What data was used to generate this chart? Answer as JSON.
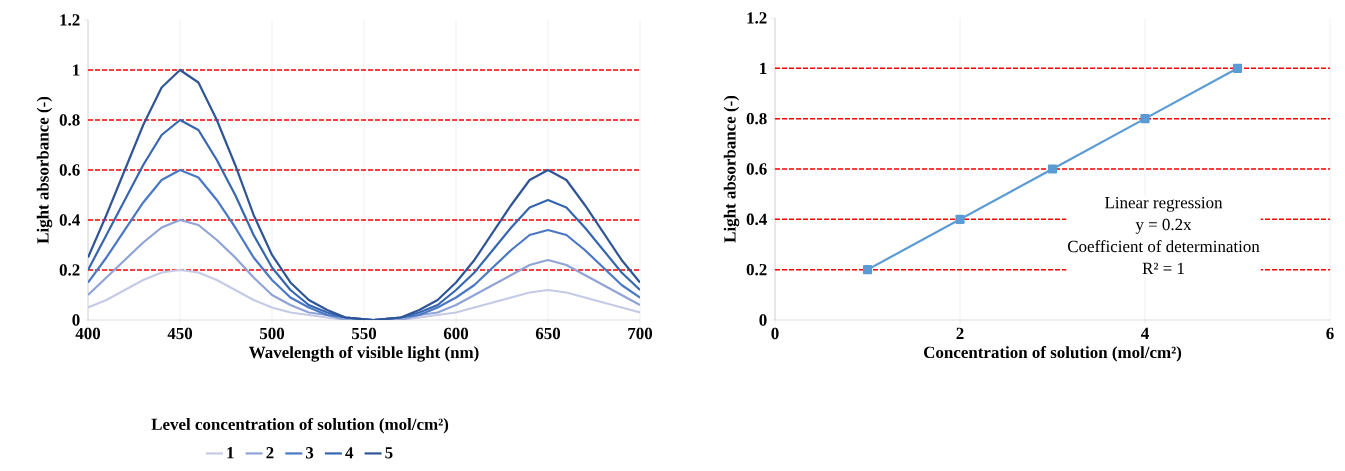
{
  "chart_data": [
    {
      "type": "line",
      "xlabel": "Wavelength of visible light (nm)",
      "ylabel": "Light absorbance (-)",
      "legend_title": "Level concentration of solution (mol/cm²)",
      "legend": "bottom",
      "grid": "x",
      "x": [
        400,
        410,
        420,
        430,
        440,
        450,
        460,
        470,
        480,
        490,
        500,
        510,
        520,
        530,
        540,
        555,
        570,
        580,
        590,
        600,
        610,
        620,
        630,
        640,
        650,
        660,
        670,
        680,
        690,
        700
      ],
      "xlim": [
        400,
        700
      ],
      "xticks": [
        400,
        450,
        500,
        550,
        600,
        650,
        700
      ],
      "ylim": [
        0,
        1.2
      ],
      "yticks": [
        0,
        0.2,
        0.4,
        0.6,
        0.8,
        1,
        1.2
      ],
      "series": [
        {
          "name": "1",
          "color": "#c5cbe6",
          "values": [
            0.05,
            0.08,
            0.12,
            0.16,
            0.19,
            0.2,
            0.19,
            0.16,
            0.12,
            0.08,
            0.05,
            0.03,
            0.02,
            0.01,
            0,
            0,
            0,
            0.01,
            0.02,
            0.03,
            0.05,
            0.07,
            0.09,
            0.11,
            0.12,
            0.11,
            0.09,
            0.07,
            0.05,
            0.03
          ]
        },
        {
          "name": "2",
          "color": "#8fa3d6",
          "values": [
            0.1,
            0.17,
            0.24,
            0.31,
            0.37,
            0.4,
            0.38,
            0.32,
            0.25,
            0.17,
            0.1,
            0.06,
            0.03,
            0.02,
            0,
            0,
            0,
            0.02,
            0.03,
            0.06,
            0.1,
            0.14,
            0.18,
            0.22,
            0.24,
            0.22,
            0.18,
            0.14,
            0.1,
            0.06
          ]
        },
        {
          "name": "3",
          "color": "#4a78c4",
          "values": [
            0.15,
            0.25,
            0.36,
            0.47,
            0.56,
            0.6,
            0.57,
            0.48,
            0.37,
            0.25,
            0.16,
            0.09,
            0.05,
            0.02,
            0.01,
            0,
            0.01,
            0.02,
            0.05,
            0.09,
            0.14,
            0.21,
            0.28,
            0.34,
            0.36,
            0.34,
            0.28,
            0.21,
            0.14,
            0.09
          ]
        },
        {
          "name": "4",
          "color": "#3766b0",
          "values": [
            0.2,
            0.34,
            0.48,
            0.62,
            0.74,
            0.8,
            0.76,
            0.64,
            0.5,
            0.34,
            0.21,
            0.12,
            0.06,
            0.03,
            0.01,
            0,
            0.01,
            0.03,
            0.06,
            0.12,
            0.19,
            0.28,
            0.37,
            0.45,
            0.48,
            0.45,
            0.37,
            0.28,
            0.19,
            0.12
          ]
        },
        {
          "name": "5",
          "color": "#2f5597",
          "values": [
            0.25,
            0.42,
            0.6,
            0.78,
            0.93,
            1.0,
            0.95,
            0.8,
            0.62,
            0.42,
            0.26,
            0.15,
            0.08,
            0.04,
            0.01,
            0,
            0.01,
            0.04,
            0.08,
            0.15,
            0.24,
            0.35,
            0.46,
            0.56,
            0.6,
            0.56,
            0.46,
            0.35,
            0.24,
            0.15
          ]
        }
      ],
      "ref_lines": [
        {
          "axis": "y",
          "value": 0.2,
          "color": "#ff0000",
          "line_style": "dashed"
        },
        {
          "axis": "y",
          "value": 0.4,
          "color": "#ff0000",
          "line_style": "dashed"
        },
        {
          "axis": "y",
          "value": 0.6,
          "color": "#ff0000",
          "line_style": "dashed"
        },
        {
          "axis": "y",
          "value": 0.8,
          "color": "#ff0000",
          "line_style": "dashed"
        },
        {
          "axis": "y",
          "value": 1,
          "color": "#ff0000",
          "line_style": "dashed"
        }
      ]
    },
    {
      "type": "line",
      "xlabel": "Concentration of solution (mol/cm²)",
      "ylabel": "Light absorbance (-)",
      "grid": "x",
      "marker": "square",
      "x": [
        1,
        2,
        3,
        4,
        5
      ],
      "xlim": [
        0,
        6
      ],
      "xticks": [
        0,
        2,
        4,
        6
      ],
      "ylim": [
        0,
        1.2
      ],
      "yticks": [
        0,
        0.2,
        0.4,
        0.6,
        0.8,
        1,
        1.2
      ],
      "series": [
        {
          "color": "#5b9bd5",
          "values": [
            0.2,
            0.4,
            0.6,
            0.8,
            1
          ]
        }
      ],
      "annotations": [
        "Linear regression",
        "y = 0.2x",
        "Coefficient of determination",
        "R² = 1"
      ],
      "ref_lines": [
        {
          "axis": "y",
          "value": 0.2,
          "color": "#ff0000",
          "line_style": "dashed"
        },
        {
          "axis": "y",
          "value": 0.4,
          "color": "#ff0000",
          "line_style": "dashed"
        },
        {
          "axis": "y",
          "value": 0.6,
          "color": "#ff0000",
          "line_style": "dashed"
        },
        {
          "axis": "y",
          "value": 0.8,
          "color": "#ff0000",
          "line_style": "dashed"
        },
        {
          "axis": "y",
          "value": 1,
          "color": "#ff0000",
          "line_style": "dashed"
        }
      ]
    }
  ]
}
